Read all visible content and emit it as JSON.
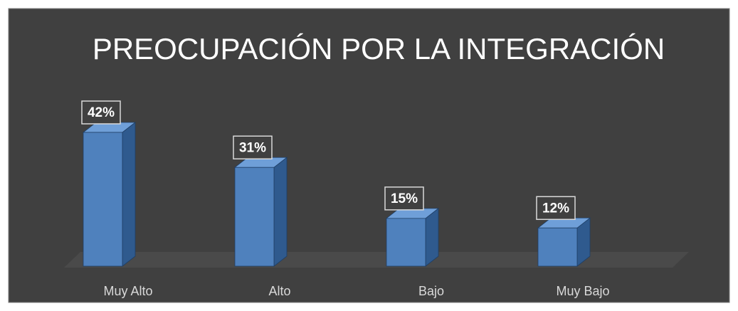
{
  "chart_data": {
    "type": "bar3d",
    "title": "PREOCUPACIÓN POR LA INTEGRACIÓN",
    "categories": [
      "Muy Alto",
      "Alto",
      "Bajo",
      "Muy Bajo"
    ],
    "values": [
      42,
      31,
      15,
      12
    ],
    "value_labels": [
      "42%",
      "31%",
      "15%",
      "12%"
    ],
    "color": "#4f81bd"
  }
}
